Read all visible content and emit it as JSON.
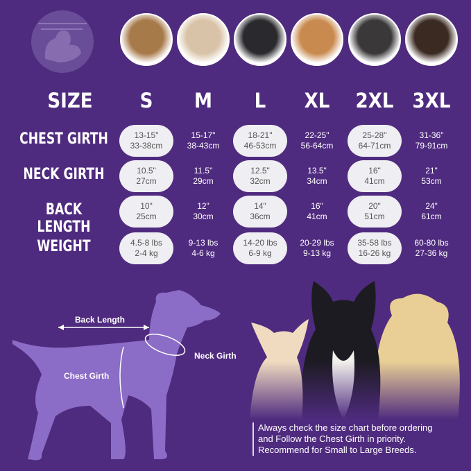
{
  "header": {
    "size_label": "SIZE",
    "sizes": [
      "S",
      "M",
      "L",
      "XL",
      "2XL",
      "3XL"
    ]
  },
  "rows": [
    {
      "label": "CHEST GIRTH",
      "values": [
        [
          "13-15\"",
          "33-38cm"
        ],
        [
          "15-17\"",
          "38-43cm"
        ],
        [
          "18-21\"",
          "46-53cm"
        ],
        [
          "22-25\"",
          "56-64cm"
        ],
        [
          "25-28\"",
          "64-71cm"
        ],
        [
          "31-36\"",
          "79-91cm"
        ]
      ]
    },
    {
      "label": "NECK GIRTH",
      "values": [
        [
          "10.5\"",
          "27cm"
        ],
        [
          "11.5\"",
          "29cm"
        ],
        [
          "12.5\"",
          "32cm"
        ],
        [
          "13.5\"",
          "34cm"
        ],
        [
          "16\"",
          "41cm"
        ],
        [
          "21\"",
          "53cm"
        ]
      ]
    },
    {
      "label": "BACK LENGTH",
      "values": [
        [
          "10\"",
          "25cm"
        ],
        [
          "12\"",
          "30cm"
        ],
        [
          "14\"",
          "36cm"
        ],
        [
          "16\"",
          "41cm"
        ],
        [
          "20\"",
          "51cm"
        ],
        [
          "24\"",
          "61cm"
        ]
      ]
    },
    {
      "label": "WEIGHT",
      "values": [
        [
          "4.5-8 lbs",
          "2-4 kg"
        ],
        [
          "9-13 lbs",
          "4-6 kg"
        ],
        [
          "14-20 lbs",
          "6-9 kg"
        ],
        [
          "20-29 lbs",
          "9-13 kg"
        ],
        [
          "35-58 lbs",
          "16-26 kg"
        ],
        [
          "60-80 lbs",
          "27-36 kg"
        ]
      ]
    }
  ],
  "diagram": {
    "back_length": "Back Length",
    "neck_girth": "Neck Girth",
    "chest_girth": "Chest Girth"
  },
  "note": [
    "Always check the size chart before ordering",
    "and Follow the Chest Girth in priority.",
    "Recommend for Small to Large Breeds."
  ],
  "colors": {
    "background": "#4f2b7f",
    "silhouette": "#8b6cc6",
    "pill": "#efeef2"
  },
  "icons": [
    "pet-logo-icon",
    "dog-silhouette-icon"
  ]
}
